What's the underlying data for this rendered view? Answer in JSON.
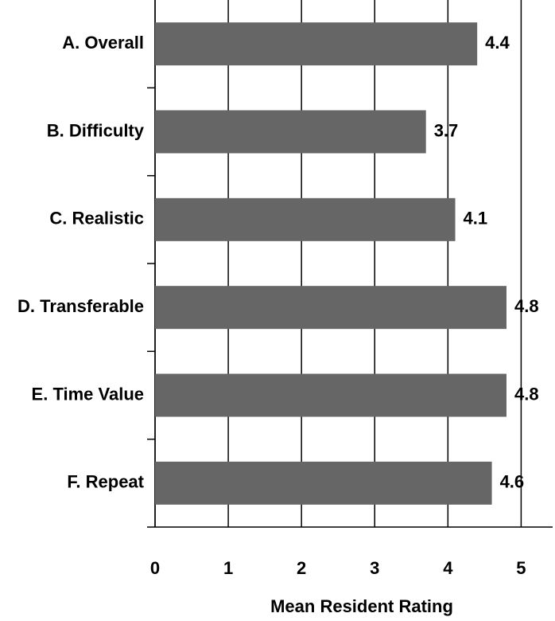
{
  "chart_data": {
    "type": "bar",
    "orientation": "horizontal",
    "categories": [
      "A. Overall",
      "B. Difficulty",
      "C. Realistic",
      "D. Transferable",
      "E. Time Value",
      "F. Repeat"
    ],
    "values": [
      4.4,
      3.7,
      4.1,
      4.8,
      4.8,
      4.6
    ],
    "color": "#666666",
    "x_label": "Mean Resident Rating",
    "xlim": [
      0,
      5.43
    ],
    "xticks": [
      0,
      1,
      2,
      3,
      4,
      5
    ],
    "grid": true
  }
}
